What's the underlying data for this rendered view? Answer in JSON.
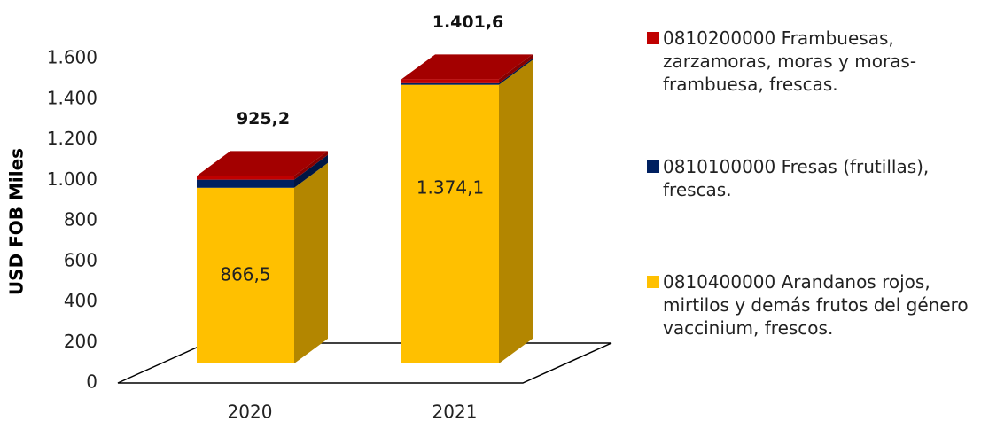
{
  "chart_data": {
    "type": "bar3d_stacked",
    "y_axis_label": "USD FOB Miles",
    "categories": [
      "2020",
      "2021"
    ],
    "series": [
      {
        "name": "0810400000 Arandanos rojos, mirtilos y demás frutos del género vaccinium, frescos.",
        "color": "#FFC000",
        "values": [
          866.5,
          1374.1
        ],
        "value_labels": [
          "866,5",
          "1.374,1"
        ]
      },
      {
        "name": "0810100000 Fresas (frutillas), frescas.",
        "color": "#002060",
        "values": [
          40,
          8
        ]
      },
      {
        "name": "0810200000 Frambuesas, zarzamoras, moras y moras-frambuesa, frescas.",
        "color": "#C00000",
        "values": [
          18.7,
          19.5
        ]
      }
    ],
    "totals": [
      925.2,
      1401.6
    ],
    "total_labels": [
      "925,2",
      "1.401,6"
    ],
    "ylim": [
      0,
      1600
    ],
    "yticks": [
      0,
      200,
      400,
      600,
      800,
      {
        "value": 1000,
        "label": "1.000"
      },
      {
        "value": 1200,
        "label": "1.200"
      },
      {
        "value": 1400,
        "label": "1.400"
      },
      {
        "value": 1600,
        "label": "1.600"
      }
    ]
  }
}
